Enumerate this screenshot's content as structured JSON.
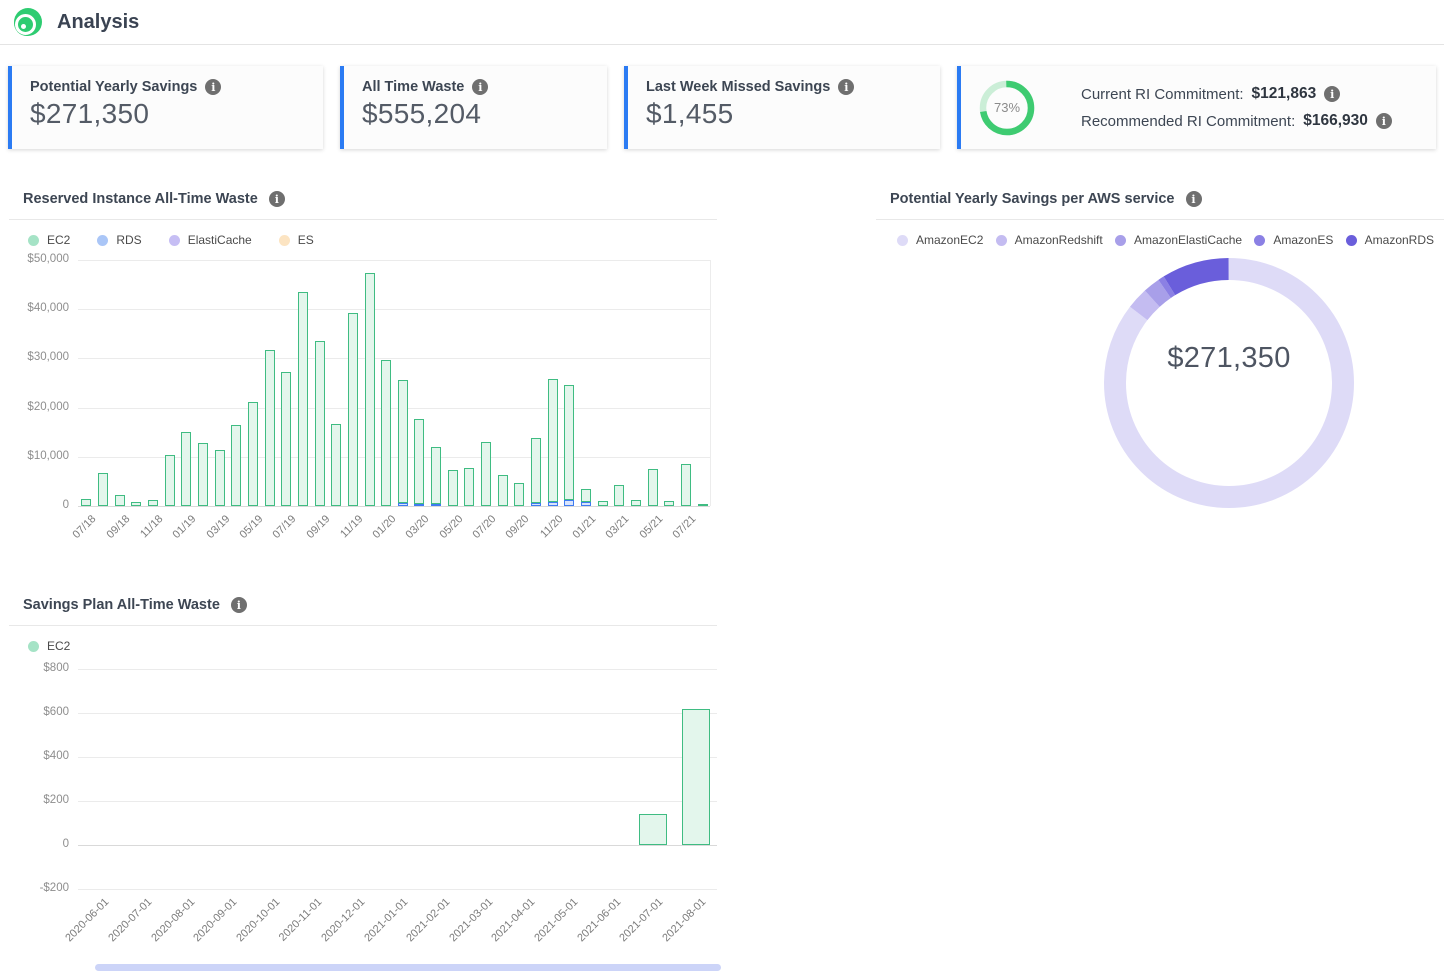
{
  "header": {
    "title": "Analysis"
  },
  "colors": {
    "accent_blue": "#2b7bf3",
    "logo_green": "#2ecc71",
    "ring_green": "#3ecb71",
    "ring_track": "#cbeed7",
    "scroll_strip": "#ccd4f8"
  },
  "cards": [
    {
      "label": "Potential Yearly Savings",
      "value": "$271,350"
    },
    {
      "label": "All Time Waste",
      "value": "$555,204"
    },
    {
      "label": "Last Week Missed Savings",
      "value": "$1,455"
    },
    {
      "ring_percent_label": "73%",
      "ring_percent_value": 73,
      "rows": [
        {
          "label": "Current RI Commitment:",
          "value": "$121,863"
        },
        {
          "label": "Recommended RI Commitment:",
          "value": "$166,930"
        }
      ]
    }
  ],
  "chart_data": [
    {
      "type": "bar",
      "stacked": true,
      "title": "Reserved Instance All-Time Waste",
      "categories": [
        "07/18",
        "08/18",
        "09/18",
        "10/18",
        "11/18",
        "12/18",
        "01/19",
        "02/19",
        "03/19",
        "04/19",
        "05/19",
        "06/19",
        "07/19",
        "08/19",
        "09/19",
        "10/19",
        "11/19",
        "12/19",
        "01/20",
        "02/20",
        "03/20",
        "04/20",
        "05/20",
        "06/20",
        "07/20",
        "08/20",
        "09/20",
        "10/20",
        "11/20",
        "12/20",
        "01/21",
        "02/21",
        "03/21",
        "04/21",
        "05/21",
        "06/21",
        "07/21",
        "08/21"
      ],
      "x_tick_labels": [
        "07/18",
        "09/18",
        "11/18",
        "01/19",
        "03/19",
        "05/19",
        "07/19",
        "09/19",
        "11/19",
        "01/20",
        "03/20",
        "05/20",
        "07/20",
        "09/20",
        "11/20",
        "01/21",
        "03/21",
        "05/21",
        "07/21"
      ],
      "y_tick_labels": [
        "0",
        "$10,000",
        "$20,000",
        "$30,000",
        "$40,000",
        "$50,000"
      ],
      "ylim": [
        0,
        50000
      ],
      "grid": true,
      "legend_position": "top",
      "series": [
        {
          "name": "EC2",
          "legend_color": "#a5e3c6",
          "fill": "#e3f6ec",
          "border": "#3fbc82",
          "values": [
            1500,
            6800,
            2300,
            900,
            1300,
            10300,
            15100,
            12900,
            11300,
            16400,
            21200,
            31700,
            27200,
            43400,
            33600,
            16700,
            39200,
            47400,
            29700,
            24900,
            17200,
            11600,
            7300,
            7800,
            13000,
            6300,
            4600,
            13200,
            24900,
            23500,
            2600,
            1000,
            4300,
            1300,
            7500,
            1000,
            8500,
            300
          ]
        },
        {
          "name": "RDS",
          "legend_color": "#aac6f7",
          "fill": "#d9e4fc",
          "border": "#3e7bf0",
          "values": [
            0,
            0,
            0,
            0,
            0,
            0,
            0,
            0,
            0,
            0,
            0,
            0,
            0,
            0,
            0,
            0,
            0,
            0,
            0,
            700,
            500,
            400,
            0,
            0,
            0,
            0,
            0,
            700,
            900,
            1200,
            800,
            0,
            0,
            0,
            0,
            0,
            0,
            0
          ]
        },
        {
          "name": "ElastiCache",
          "legend_color": "#c6bef4",
          "fill": "#e8e4fb",
          "border": "#8d82e6",
          "values": [
            0,
            0,
            0,
            0,
            0,
            0,
            0,
            0,
            0,
            0,
            0,
            0,
            0,
            0,
            0,
            0,
            0,
            0,
            0,
            0,
            0,
            0,
            0,
            0,
            0,
            0,
            0,
            0,
            0,
            0,
            0,
            0,
            0,
            0,
            0,
            0,
            0,
            0
          ]
        },
        {
          "name": "ES",
          "legend_color": "#fce4c2",
          "fill": "#fdf0dc",
          "border": "#f0b963",
          "values": [
            0,
            0,
            0,
            0,
            0,
            0,
            0,
            0,
            0,
            0,
            0,
            0,
            0,
            0,
            0,
            0,
            0,
            0,
            0,
            0,
            0,
            0,
            0,
            0,
            0,
            0,
            0,
            0,
            0,
            0,
            0,
            0,
            0,
            0,
            0,
            0,
            0,
            0
          ]
        }
      ]
    },
    {
      "type": "pie",
      "title": "Potential Yearly Savings per AWS service",
      "center_label": "$271,350",
      "legend_position": "top",
      "slices": [
        {
          "label": "AmazonEC2",
          "percent_estimate": 85.5,
          "color": "#dedbf7"
        },
        {
          "label": "AmazonRedshift",
          "percent_estimate": 2.8,
          "color": "#c4bcf1"
        },
        {
          "label": "AmazonElastiCache",
          "percent_estimate": 2.2,
          "color": "#a89fe9"
        },
        {
          "label": "AmazonES",
          "percent_estimate": 0.8,
          "color": "#8b80e4"
        },
        {
          "label": "AmazonRDS",
          "percent_estimate": 8.7,
          "color": "#6a5edb"
        }
      ]
    },
    {
      "type": "bar",
      "stacked": false,
      "title": "Savings Plan All-Time Waste",
      "categories": [
        "2020-06-01",
        "2020-07-01",
        "2020-08-01",
        "2020-09-01",
        "2020-10-01",
        "2020-11-01",
        "2020-12-01",
        "2021-01-01",
        "2021-02-01",
        "2021-03-01",
        "2021-04-01",
        "2021-05-01",
        "2021-06-01",
        "2021-07-01",
        "2021-08-01"
      ],
      "y_tick_labels": [
        "-$200",
        "0",
        "$200",
        "$400",
        "$600",
        "$800"
      ],
      "ylim": [
        -200,
        800
      ],
      "grid": true,
      "legend_position": "top",
      "series": [
        {
          "name": "EC2",
          "legend_color": "#a5e3c6",
          "fill": "#e3f6ec",
          "border": "#3fbc82",
          "values": [
            0,
            0,
            0,
            0,
            0,
            0,
            0,
            0,
            0,
            0,
            0,
            0,
            0,
            140,
            620
          ]
        }
      ]
    }
  ]
}
